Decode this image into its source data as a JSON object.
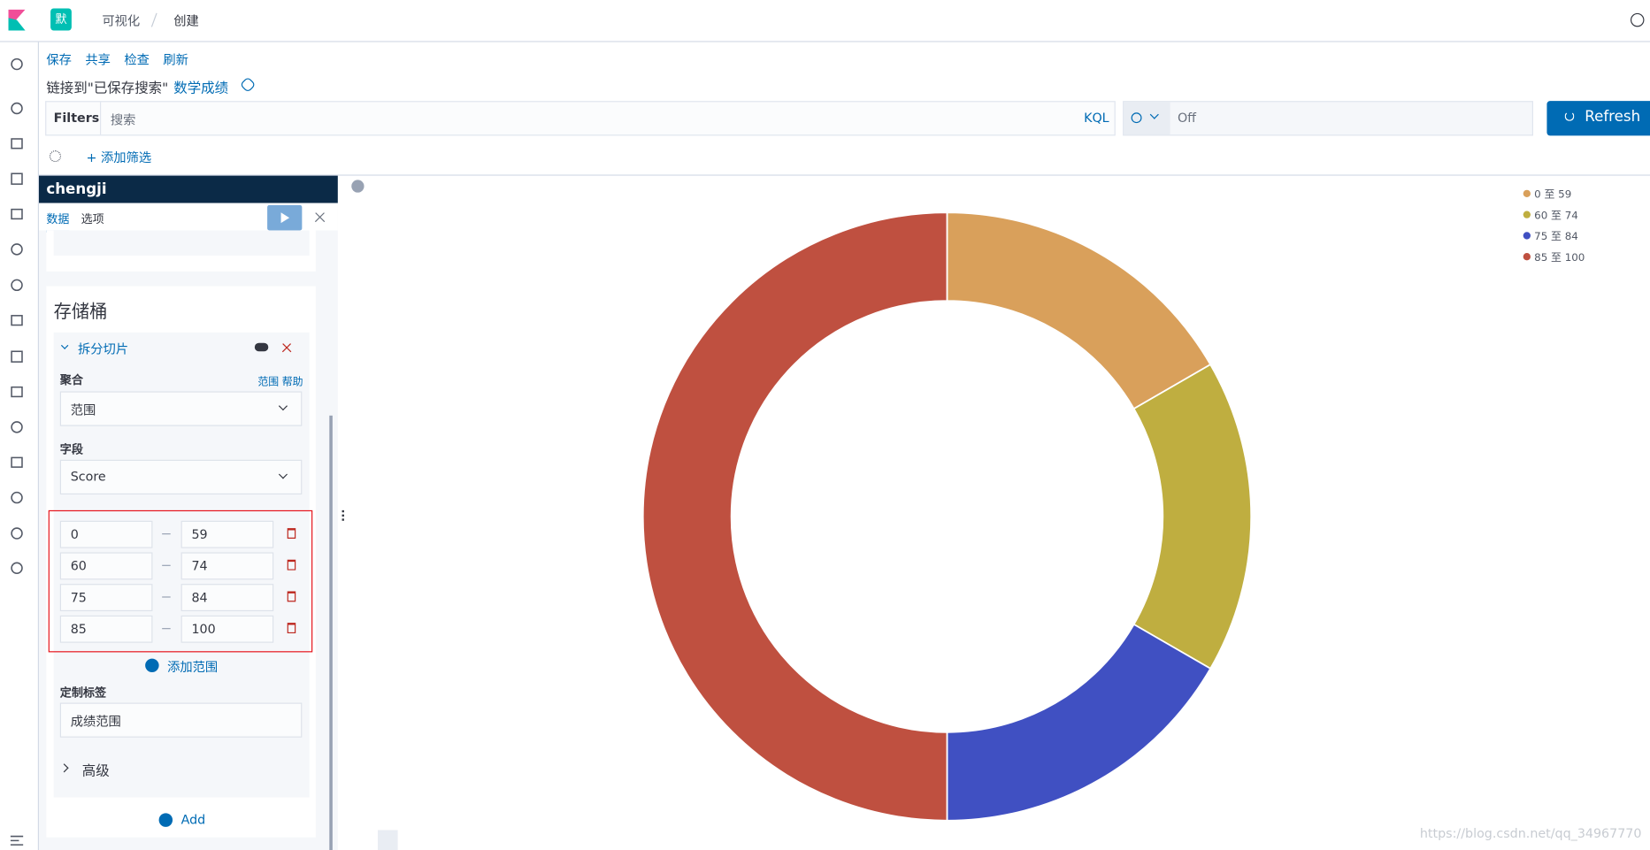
{
  "header": {
    "app_badge": "默",
    "breadcrumbs": [
      "可视化",
      "创建"
    ]
  },
  "toolbar": {
    "actions": [
      "保存",
      "共享",
      "检查",
      "刷新"
    ],
    "linked_prefix": "链接到\"已保存搜索\"",
    "linked_search": "数学成绩"
  },
  "query_bar": {
    "filters_label": "Filters",
    "search_placeholder": "搜索",
    "language": "KQL",
    "refresh_interval": "Off",
    "refresh_button": "Refresh",
    "add_filter": "+ 添加筛选"
  },
  "editor": {
    "index": "chengji",
    "tabs": [
      "数据",
      "选项"
    ],
    "buckets_title": "存储桶",
    "bucket_type": "拆分切片",
    "aggregation_label": "聚合",
    "aggregation_links": [
      "范围",
      "帮助"
    ],
    "aggregation": "范围",
    "field_label": "字段",
    "field": "Score",
    "ranges": [
      [
        0,
        59
      ],
      [
        60,
        74
      ],
      [
        75,
        84
      ],
      [
        85,
        100
      ]
    ],
    "add_range": "添加范围",
    "custom_label_title": "定制标签",
    "custom_label": "成绩范围",
    "advanced": "高级",
    "add": "Add"
  },
  "chart_data": {
    "type": "pie",
    "donut": true,
    "categories": [
      "0 至 59",
      "60 至 74",
      "75 至 84",
      "85 至 100"
    ],
    "values": [
      1,
      1,
      1,
      3
    ],
    "colors": [
      "#d9a05b",
      "#bfae40",
      "#4050c2",
      "#bf5040"
    ],
    "legend": "top-right"
  },
  "watermark": "https://blog.csdn.net/qq_34967770"
}
